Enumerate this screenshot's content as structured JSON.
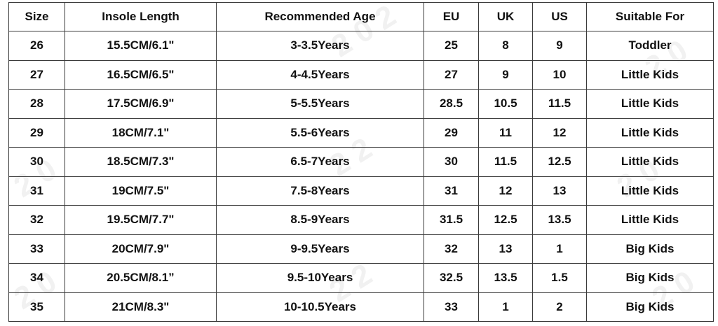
{
  "table": {
    "headers": [
      "Size",
      "Insole Length",
      "Recommended Age",
      "EU",
      "UK",
      "US",
      "Suitable For"
    ],
    "rows": [
      [
        "26",
        "15.5CM/6.1\"",
        "3-3.5Years",
        "25",
        "8",
        "9",
        "Toddler"
      ],
      [
        "27",
        "16.5CM/6.5\"",
        "4-4.5Years",
        "27",
        "9",
        "10",
        "Little Kids"
      ],
      [
        "28",
        "17.5CM/6.9\"",
        "5-5.5Years",
        "28.5",
        "10.5",
        "11.5",
        "Little Kids"
      ],
      [
        "29",
        "18CM/7.1\"",
        "5.5-6Years",
        "29",
        "11",
        "12",
        "Little Kids"
      ],
      [
        "30",
        "18.5CM/7.3\"",
        "6.5-7Years",
        "30",
        "11.5",
        "12.5",
        "Little Kids"
      ],
      [
        "31",
        "19CM/7.5\"",
        "7.5-8Years",
        "31",
        "12",
        "13",
        "Little Kids"
      ],
      [
        "32",
        "19.5CM/7.7\"",
        "8.5-9Years",
        "31.5",
        "12.5",
        "13.5",
        "Little Kids"
      ],
      [
        "33",
        "20CM/7.9\"",
        "9-9.5Years",
        "32",
        "13",
        "1",
        "Big Kids"
      ],
      [
        "34",
        "20.5CM/8.1”",
        "9.5-10Years",
        "32.5",
        "13.5",
        "1.5",
        "Big Kids"
      ],
      [
        "35",
        "21CM/8.3\"",
        "10-10.5Years",
        "33",
        "1",
        "2",
        "Big Kids"
      ]
    ]
  }
}
